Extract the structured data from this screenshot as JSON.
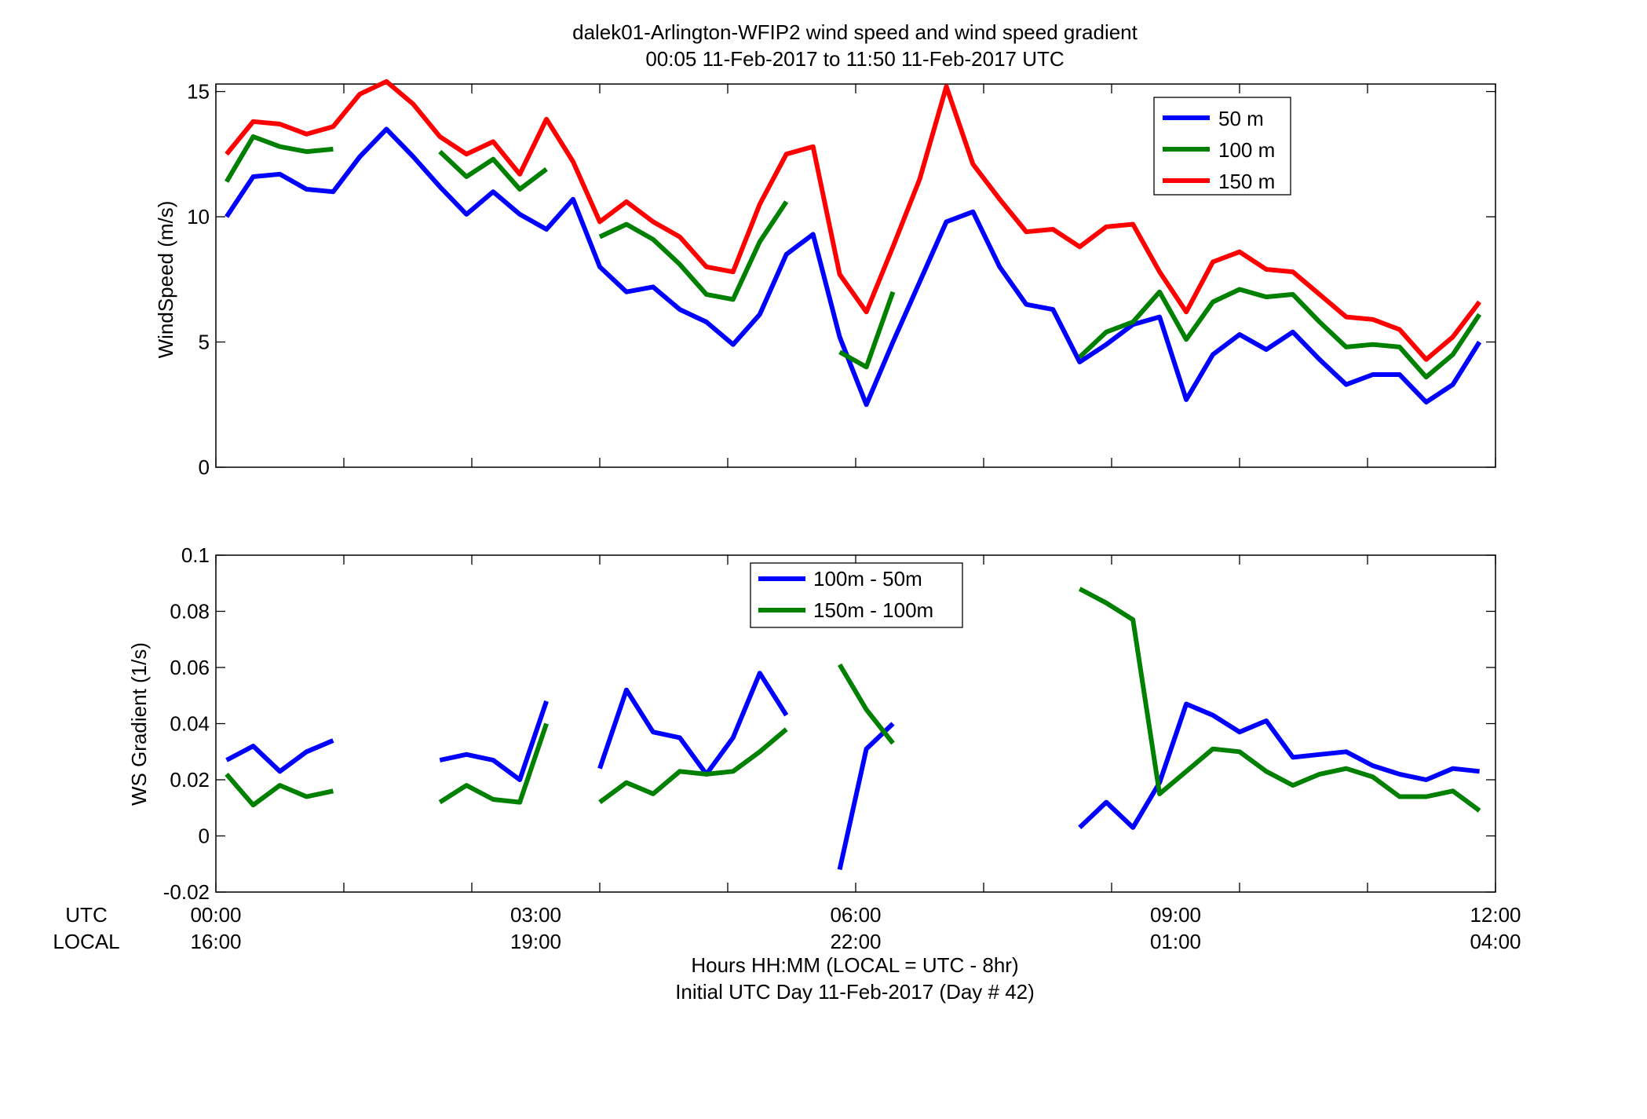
{
  "title": {
    "line1": "dalek01-Arlington-WFIP2  wind speed and wind speed gradient",
    "line2": "00:05 11-Feb-2017 to 11:50 11-Feb-2017  UTC"
  },
  "time_labels": {
    "utc_label": "UTC",
    "local_label": "LOCAL",
    "xlabel_line1": "Hours HH:MM  (LOCAL = UTC - 8hr)",
    "xlabel_line2": "Initial UTC Day 11-Feb-2017 (Day # 42)",
    "utc_ticks": [
      "00:00",
      "03:00",
      "06:00",
      "09:00",
      "12:00"
    ],
    "local_ticks": [
      "16:00",
      "19:00",
      "22:00",
      "01:00",
      "04:00"
    ]
  },
  "colors": {
    "blue": "#0000ff",
    "green": "#008000",
    "red": "#ff0000"
  },
  "chart_data": [
    {
      "type": "line",
      "ylabel": "WindSpeed (m/s)",
      "xlim": [
        0,
        12
      ],
      "ylim": [
        0,
        15.3
      ],
      "yticks": [
        0,
        5,
        10,
        15
      ],
      "xtick_hours": [
        0,
        1.2,
        2.4,
        3.6,
        4.8,
        6.0,
        7.2,
        8.4,
        9.6,
        10.8,
        12
      ],
      "legend_position": "top-right",
      "series": [
        {
          "name": "50 m",
          "color": "blue",
          "x": [
            0.1,
            0.35,
            0.6,
            0.85,
            1.1,
            1.35,
            1.6,
            1.85,
            2.1,
            2.35,
            2.6,
            2.85,
            3.1,
            3.35,
            3.6,
            3.85,
            4.1,
            4.35,
            4.6,
            4.85,
            5.1,
            5.35,
            5.6,
            5.85,
            6.1,
            6.35,
            6.6,
            6.85,
            7.1,
            7.35,
            7.6,
            7.85,
            8.1,
            8.35,
            8.6,
            8.85,
            9.1,
            9.35,
            9.6,
            9.85,
            10.1,
            10.35,
            10.6,
            10.85,
            11.1,
            11.35,
            11.6,
            11.85
          ],
          "values": [
            10.0,
            11.6,
            11.7,
            11.1,
            11.0,
            12.4,
            13.5,
            12.4,
            11.2,
            10.1,
            11.0,
            10.1,
            9.5,
            10.7,
            8.0,
            7.0,
            7.2,
            6.3,
            5.8,
            4.9,
            6.1,
            8.5,
            9.3,
            5.2,
            2.5,
            5.0,
            7.4,
            9.8,
            10.2,
            8.0,
            6.5,
            6.3,
            4.2,
            4.9,
            5.7,
            6.0,
            2.7,
            4.5,
            5.3,
            4.7,
            5.4,
            4.3,
            3.3,
            3.7,
            3.7,
            2.6,
            3.3,
            5.0
          ]
        },
        {
          "name": "100 m",
          "color": "green",
          "x": [
            0.1,
            0.35,
            0.6,
            0.85,
            1.1,
            null,
            2.1,
            2.35,
            2.6,
            2.85,
            3.1,
            null,
            3.6,
            3.85,
            4.1,
            4.35,
            4.6,
            4.85,
            5.1,
            5.35,
            null,
            5.85,
            6.1,
            6.35,
            null,
            8.1,
            8.35,
            8.6,
            8.85,
            9.1,
            9.35,
            9.6,
            9.85,
            10.1,
            10.35,
            10.6,
            10.85,
            11.1,
            11.35,
            11.6,
            11.85
          ],
          "values": [
            11.4,
            13.2,
            12.8,
            12.6,
            12.7,
            null,
            12.6,
            11.6,
            12.3,
            11.1,
            11.9,
            null,
            9.2,
            9.7,
            9.1,
            8.1,
            6.9,
            6.7,
            9.0,
            10.6,
            null,
            4.6,
            4.0,
            7.0,
            null,
            4.4,
            5.4,
            5.8,
            7.0,
            5.1,
            6.6,
            7.1,
            6.8,
            6.9,
            5.8,
            4.8,
            4.9,
            4.8,
            3.6,
            4.5,
            6.1
          ]
        },
        {
          "name": "150 m",
          "color": "red",
          "x": [
            0.1,
            0.35,
            0.6,
            0.85,
            1.1,
            1.35,
            1.6,
            1.85,
            2.1,
            2.35,
            2.6,
            2.85,
            3.1,
            3.35,
            3.6,
            3.85,
            4.1,
            4.35,
            4.6,
            4.85,
            5.1,
            5.35,
            5.6,
            5.85,
            6.1,
            6.35,
            6.6,
            6.85,
            7.1,
            7.35,
            7.6,
            7.85,
            8.1,
            8.35,
            8.6,
            8.85,
            9.1,
            9.35,
            9.6,
            9.85,
            10.1,
            10.35,
            10.6,
            10.85,
            11.1,
            11.35,
            11.6,
            11.85
          ],
          "values": [
            12.5,
            13.8,
            13.7,
            13.3,
            13.6,
            14.9,
            15.4,
            14.5,
            13.2,
            12.5,
            13.0,
            11.7,
            13.9,
            12.2,
            9.8,
            10.6,
            9.8,
            9.2,
            8.0,
            7.8,
            10.5,
            12.5,
            12.8,
            7.7,
            6.2,
            8.8,
            11.5,
            15.2,
            12.1,
            10.7,
            9.4,
            9.5,
            8.8,
            9.6,
            9.7,
            7.8,
            6.2,
            8.2,
            8.6,
            7.9,
            7.8,
            6.9,
            6.0,
            5.9,
            5.5,
            4.3,
            5.2,
            6.6
          ]
        }
      ]
    },
    {
      "type": "line",
      "ylabel": "WS Gradient (1/s)",
      "xlim": [
        0,
        12
      ],
      "ylim": [
        -0.02,
        0.1
      ],
      "yticks": [
        "-0.02",
        "0",
        "0.02",
        "0.04",
        "0.06",
        "0.08",
        "0.1"
      ],
      "xtick_hours": [
        0,
        1.2,
        2.4,
        3.6,
        4.8,
        6.0,
        7.2,
        8.4,
        9.6,
        10.8,
        12
      ],
      "legend_position": "top-center",
      "series": [
        {
          "name": "100m - 50m",
          "color": "blue",
          "x": [
            0.1,
            0.35,
            0.6,
            0.85,
            1.1,
            null,
            2.1,
            2.35,
            2.6,
            2.85,
            3.1,
            null,
            3.6,
            3.85,
            4.1,
            4.35,
            4.6,
            4.85,
            5.1,
            5.35,
            null,
            5.85,
            6.1,
            6.35,
            null,
            8.1,
            8.35,
            8.6,
            8.85,
            9.1,
            9.35,
            9.6,
            9.85,
            10.1,
            10.35,
            10.6,
            10.85,
            11.1,
            11.35,
            11.6,
            11.85
          ],
          "values": [
            0.027,
            0.032,
            0.023,
            0.03,
            0.034,
            null,
            0.027,
            0.029,
            0.027,
            0.02,
            0.048,
            null,
            0.024,
            0.052,
            0.037,
            0.035,
            0.022,
            0.035,
            0.058,
            0.043,
            null,
            -0.012,
            0.031,
            0.04,
            null,
            0.003,
            0.012,
            0.003,
            0.019,
            0.047,
            0.043,
            0.037,
            0.041,
            0.028,
            0.029,
            0.03,
            0.025,
            0.022,
            0.02,
            0.024,
            0.023
          ]
        },
        {
          "name": "150m - 100m",
          "color": "green",
          "x": [
            0.1,
            0.35,
            0.6,
            0.85,
            1.1,
            null,
            2.1,
            2.35,
            2.6,
            2.85,
            3.1,
            null,
            3.6,
            3.85,
            4.1,
            4.35,
            4.6,
            4.85,
            5.1,
            5.35,
            null,
            5.85,
            6.1,
            6.35,
            null,
            8.1,
            8.35,
            8.6,
            8.85,
            9.1,
            9.35,
            9.6,
            9.85,
            10.1,
            10.35,
            10.6,
            10.85,
            11.1,
            11.35,
            11.6,
            11.85
          ],
          "values": [
            0.022,
            0.011,
            0.018,
            0.014,
            0.016,
            null,
            0.012,
            0.018,
            0.013,
            0.012,
            0.04,
            null,
            0.012,
            0.019,
            0.015,
            0.023,
            0.022,
            0.023,
            0.03,
            0.038,
            null,
            0.061,
            0.045,
            0.033,
            null,
            0.088,
            0.083,
            0.077,
            0.015,
            0.023,
            0.031,
            0.03,
            0.023,
            0.018,
            0.022,
            0.024,
            0.021,
            0.014,
            0.014,
            0.016,
            0.009
          ]
        }
      ]
    }
  ]
}
